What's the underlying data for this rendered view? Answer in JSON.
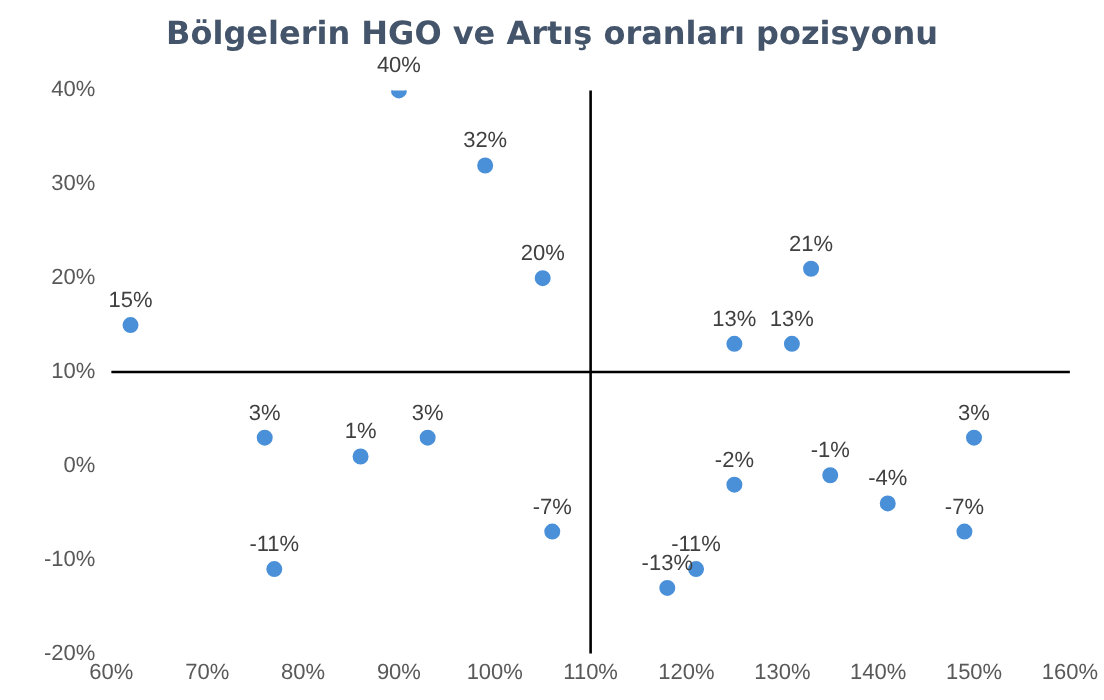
{
  "chart_data": {
    "type": "scatter",
    "title": "Bölgelerin HGO ve Artış oranları pozisyonu",
    "x": [
      62,
      76,
      77,
      86,
      90,
      93,
      99,
      105,
      106,
      125,
      131,
      133,
      125,
      135,
      141,
      150,
      149,
      121,
      118
    ],
    "series": [
      {
        "color": "#4a90d9",
        "values": [
          15,
          3,
          -11,
          1,
          40,
          3,
          32,
          20,
          -7,
          13,
          13,
          21,
          -2,
          -1,
          -4,
          3,
          -7,
          -11,
          -13
        ],
        "value_labels": [
          "15%",
          "3%",
          "-11%",
          "1%",
          "40%",
          "3%",
          "32%",
          "20%",
          "-7%",
          "13%",
          "13%",
          "21%",
          "-2%",
          "-1%",
          "-4%",
          "3%",
          "-7%",
          "-11%",
          "-13%"
        ]
      }
    ],
    "xlim": [
      60,
      160
    ],
    "xticks": [
      {
        "value": 60,
        "label": "60%"
      },
      {
        "value": 70,
        "label": "70%"
      },
      {
        "value": 80,
        "label": "80%"
      },
      {
        "value": 90,
        "label": "90%"
      },
      {
        "value": 100,
        "label": "100%"
      },
      {
        "value": 110,
        "label": "110%"
      },
      {
        "value": 120,
        "label": "120%"
      },
      {
        "value": 130,
        "label": "130%"
      },
      {
        "value": 140,
        "label": "140%"
      },
      {
        "value": 150,
        "label": "150%"
      },
      {
        "value": 160,
        "label": "160%"
      }
    ],
    "ylim": [
      -20,
      40
    ],
    "yticks": [
      {
        "value": -20,
        "label": "-20%"
      },
      {
        "value": -10,
        "label": "-10%"
      },
      {
        "value": 0,
        "label": "0%"
      },
      {
        "value": 10,
        "label": "10%"
      },
      {
        "value": 20,
        "label": "20%"
      },
      {
        "value": 30,
        "label": "30%"
      },
      {
        "value": 40,
        "label": "40%"
      }
    ],
    "ref_lines": [
      {
        "axis": "x",
        "value": 110,
        "color": "#000000"
      },
      {
        "axis": "y",
        "value": 10,
        "color": "#000000"
      }
    ],
    "grid": false,
    "legend": false,
    "marker": "circle"
  }
}
